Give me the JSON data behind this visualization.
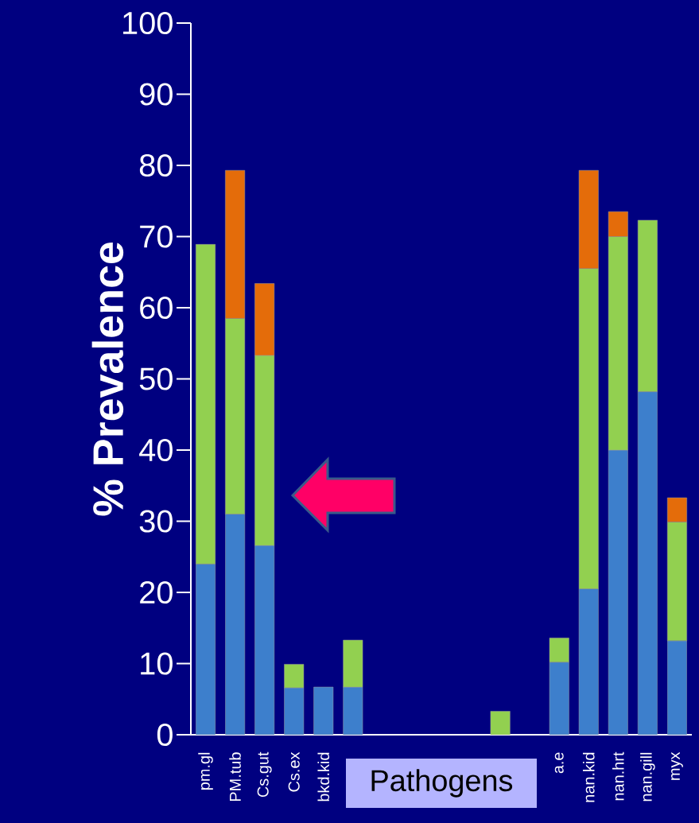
{
  "chart_data": {
    "type": "bar",
    "stacked": true,
    "ylabel": "% Prevalence",
    "xlabel": "Pathogens",
    "categories": [
      "pm.gl",
      "PM.tub",
      "Cs.gut",
      "Cs.ex",
      "bkd.kid",
      null,
      null,
      null,
      null,
      null,
      null,
      null,
      "a.e",
      "nan.kid",
      "nan.hrt",
      "nan.gill",
      "myx"
    ],
    "series": [
      {
        "color": "#3d7fcc",
        "values": [
          24,
          31,
          26.6,
          6.6,
          6.7,
          6.7,
          null,
          null,
          null,
          null,
          null,
          null,
          10.2,
          20.5,
          40,
          48.2,
          13.2
        ]
      },
      {
        "color": "#92d050",
        "values": [
          44.9,
          27.5,
          26.7,
          3.3,
          null,
          6.6,
          null,
          null,
          null,
          null,
          3.3,
          null,
          3.4,
          45,
          30,
          24.1,
          16.7
        ]
      },
      {
        "color": "#e46c0a",
        "values": [
          null,
          20.8,
          10.1,
          null,
          null,
          null,
          null,
          null,
          null,
          null,
          null,
          null,
          null,
          13.8,
          3.5,
          null,
          3.4
        ]
      }
    ],
    "ylim": [
      0,
      100
    ],
    "yticks": [
      0,
      10,
      20,
      30,
      40,
      50,
      60,
      70,
      80,
      90,
      100
    ]
  }
}
